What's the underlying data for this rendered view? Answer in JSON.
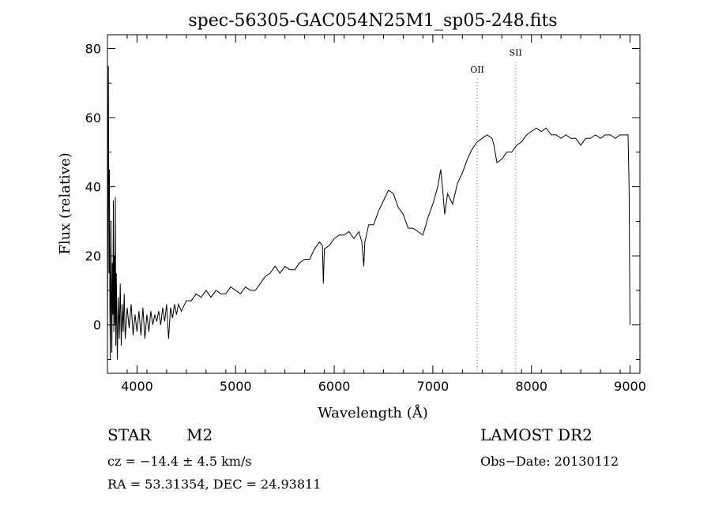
{
  "chart_data": {
    "type": "line",
    "title": "spec-56305-GAC054N25M1_sp05-248.fits",
    "xlabel": "Wavelength (Å)",
    "ylabel": "Flux (relative)",
    "xlim": [
      3700,
      9100
    ],
    "ylim": [
      -14,
      84
    ],
    "x_ticks": [
      4000,
      5000,
      6000,
      7000,
      8000,
      9000
    ],
    "y_ticks": [
      0,
      20,
      40,
      60,
      80
    ],
    "grid": false,
    "line_color": "#000000",
    "marker_color": "#666666",
    "series": [
      {
        "points": [
          [
            3700,
            -3
          ],
          [
            3710,
            75
          ],
          [
            3715,
            15
          ],
          [
            3720,
            45
          ],
          [
            3725,
            5
          ],
          [
            3730,
            -10
          ],
          [
            3735,
            30
          ],
          [
            3740,
            8
          ],
          [
            3745,
            -8
          ],
          [
            3750,
            18
          ],
          [
            3755,
            3
          ],
          [
            3760,
            36
          ],
          [
            3765,
            -2
          ],
          [
            3770,
            20
          ],
          [
            3775,
            0
          ],
          [
            3780,
            37
          ],
          [
            3785,
            -6
          ],
          [
            3790,
            15
          ],
          [
            3800,
            -10
          ],
          [
            3810,
            8
          ],
          [
            3820,
            -4
          ],
          [
            3830,
            12
          ],
          [
            3840,
            -6
          ],
          [
            3850,
            6
          ],
          [
            3860,
            -2
          ],
          [
            3870,
            9
          ],
          [
            3880,
            -4
          ],
          [
            3900,
            5
          ],
          [
            3920,
            -1
          ],
          [
            3940,
            6
          ],
          [
            3960,
            -3
          ],
          [
            3980,
            3
          ],
          [
            4000,
            -2
          ],
          [
            4020,
            4
          ],
          [
            4040,
            -3
          ],
          [
            4060,
            5
          ],
          [
            4080,
            -4
          ],
          [
            4100,
            3
          ],
          [
            4120,
            -2
          ],
          [
            4140,
            4
          ],
          [
            4160,
            0
          ],
          [
            4180,
            3
          ],
          [
            4200,
            1
          ],
          [
            4220,
            4
          ],
          [
            4240,
            0
          ],
          [
            4260,
            5
          ],
          [
            4280,
            1
          ],
          [
            4300,
            6
          ],
          [
            4320,
            -4
          ],
          [
            4340,
            5
          ],
          [
            4360,
            2
          ],
          [
            4380,
            6
          ],
          [
            4400,
            3
          ],
          [
            4420,
            6
          ],
          [
            4450,
            4
          ],
          [
            4500,
            7
          ],
          [
            4550,
            7
          ],
          [
            4600,
            9
          ],
          [
            4650,
            8
          ],
          [
            4700,
            10
          ],
          [
            4750,
            8
          ],
          [
            4800,
            10
          ],
          [
            4850,
            9
          ],
          [
            4900,
            9
          ],
          [
            4950,
            11
          ],
          [
            5000,
            10
          ],
          [
            5050,
            9
          ],
          [
            5100,
            11
          ],
          [
            5150,
            10
          ],
          [
            5200,
            10
          ],
          [
            5250,
            12
          ],
          [
            5300,
            14
          ],
          [
            5350,
            15
          ],
          [
            5400,
            17
          ],
          [
            5450,
            15
          ],
          [
            5500,
            17
          ],
          [
            5550,
            16
          ],
          [
            5600,
            16
          ],
          [
            5650,
            18
          ],
          [
            5700,
            19
          ],
          [
            5750,
            19
          ],
          [
            5800,
            22
          ],
          [
            5850,
            24
          ],
          [
            5880,
            23
          ],
          [
            5890,
            12
          ],
          [
            5900,
            22
          ],
          [
            5950,
            23
          ],
          [
            6000,
            25
          ],
          [
            6050,
            26
          ],
          [
            6100,
            26
          ],
          [
            6150,
            27
          ],
          [
            6200,
            25
          ],
          [
            6250,
            27
          ],
          [
            6280,
            24
          ],
          [
            6300,
            17
          ],
          [
            6310,
            24
          ],
          [
            6350,
            29
          ],
          [
            6400,
            29
          ],
          [
            6450,
            33
          ],
          [
            6500,
            36
          ],
          [
            6550,
            39
          ],
          [
            6600,
            38
          ],
          [
            6650,
            34
          ],
          [
            6700,
            32
          ],
          [
            6750,
            28
          ],
          [
            6800,
            28
          ],
          [
            6850,
            27
          ],
          [
            6900,
            26
          ],
          [
            6950,
            31
          ],
          [
            7000,
            35
          ],
          [
            7050,
            40
          ],
          [
            7080,
            45
          ],
          [
            7100,
            39
          ],
          [
            7120,
            32
          ],
          [
            7150,
            38
          ],
          [
            7200,
            35
          ],
          [
            7250,
            41
          ],
          [
            7300,
            44
          ],
          [
            7350,
            48
          ],
          [
            7400,
            51
          ],
          [
            7450,
            53
          ],
          [
            7500,
            54
          ],
          [
            7550,
            55
          ],
          [
            7600,
            54
          ],
          [
            7620,
            52
          ],
          [
            7650,
            47
          ],
          [
            7700,
            48
          ],
          [
            7750,
            50
          ],
          [
            7800,
            50
          ],
          [
            7850,
            52
          ],
          [
            7900,
            53
          ],
          [
            7950,
            55
          ],
          [
            8000,
            56
          ],
          [
            8050,
            57
          ],
          [
            8100,
            56
          ],
          [
            8150,
            57
          ],
          [
            8200,
            55
          ],
          [
            8250,
            55
          ],
          [
            8300,
            54
          ],
          [
            8350,
            55
          ],
          [
            8400,
            54
          ],
          [
            8450,
            54
          ],
          [
            8500,
            52
          ],
          [
            8550,
            54
          ],
          [
            8600,
            54
          ],
          [
            8650,
            55
          ],
          [
            8700,
            54
          ],
          [
            8750,
            55
          ],
          [
            8800,
            55
          ],
          [
            8850,
            54
          ],
          [
            8900,
            55
          ],
          [
            8950,
            55
          ],
          [
            8980,
            55
          ],
          [
            8990,
            40
          ],
          [
            9000,
            0
          ]
        ]
      }
    ],
    "annotations": [
      {
        "label": "OII",
        "x": 7450,
        "label_y": 73
      },
      {
        "label": "SII",
        "x": 7840,
        "label_y": 78
      }
    ]
  },
  "info": {
    "class_label": "STAR",
    "subclass": "M2",
    "survey": "LAMOST DR2",
    "cz": "cz = −14.4 ± 4.5 km/s",
    "obs_date": "Obs−Date: 20130112",
    "coords": "RA =  53.31354, DEC =  24.93811"
  }
}
